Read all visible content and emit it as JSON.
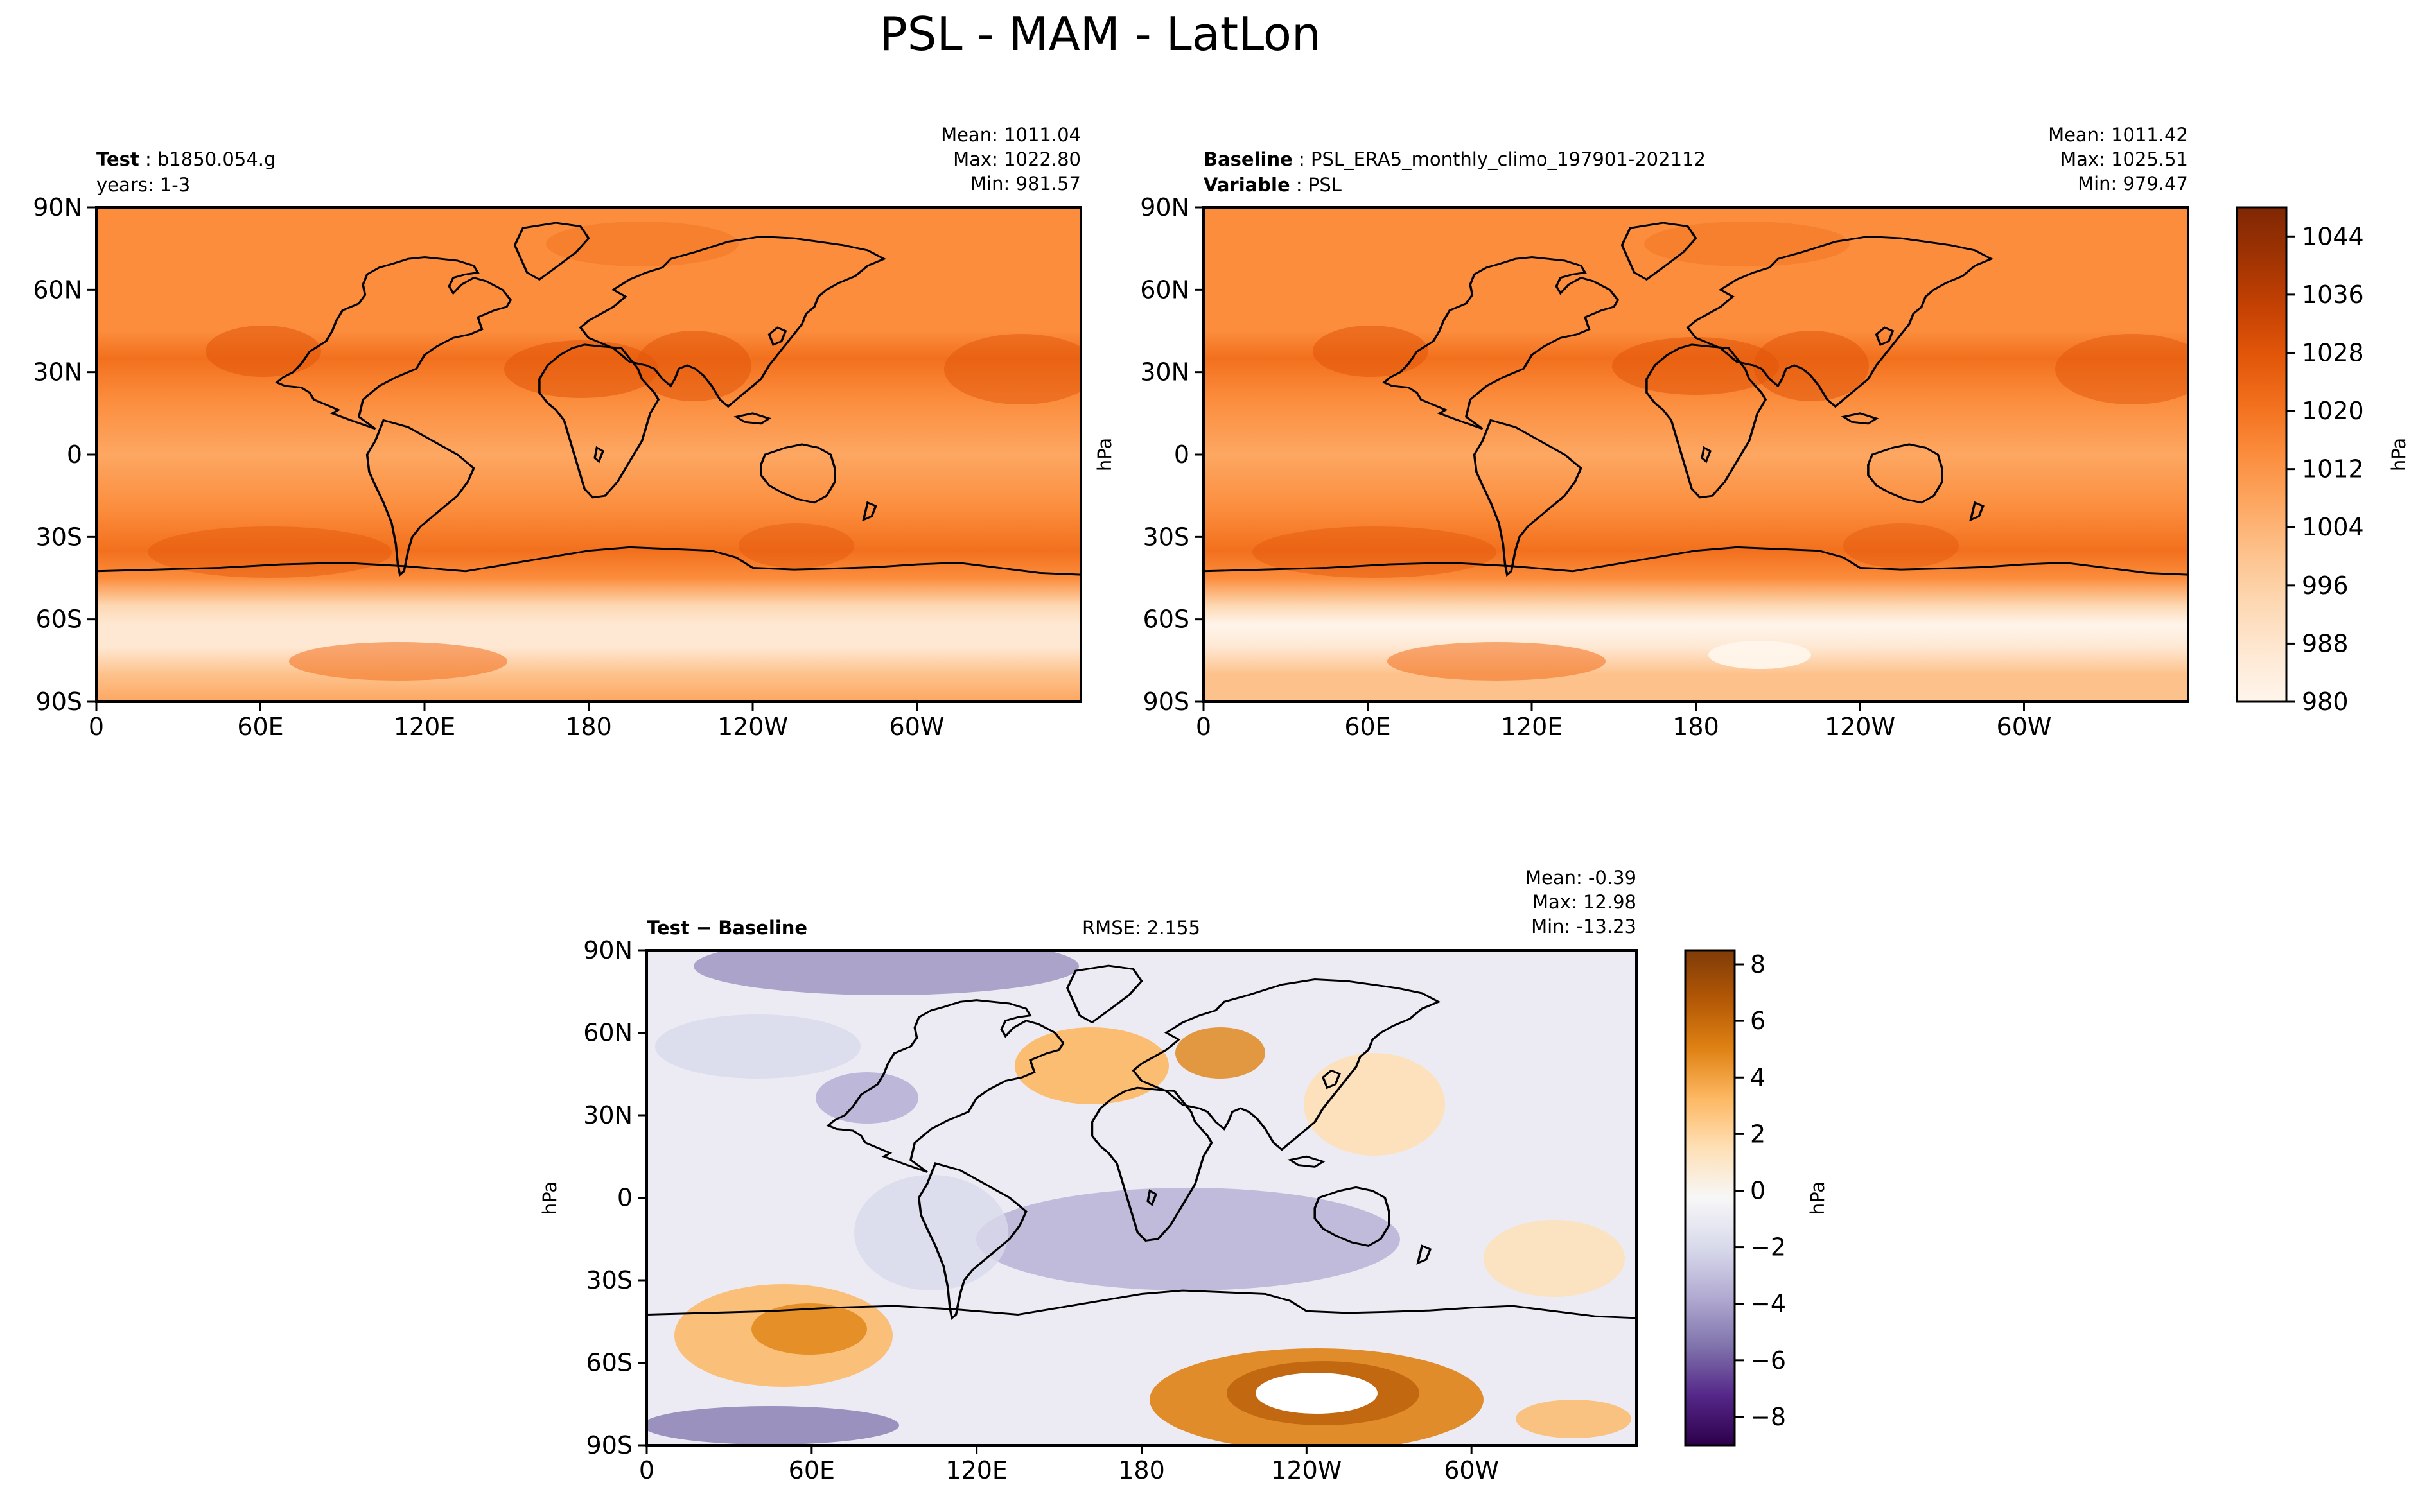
{
  "figure_title": "PSL - MAM - LatLon",
  "colors": {
    "sequential": [
      "#fff5eb",
      "#fee8d3",
      "#fdd8b3",
      "#fdc28c",
      "#fda762",
      "#fb8d3d",
      "#f2701d",
      "#e25609",
      "#c44103",
      "#9f3303",
      "#7f2704"
    ],
    "diverging": [
      "#2d004b",
      "#542788",
      "#8073ac",
      "#b2abd2",
      "#d8daeb",
      "#f7f7f7",
      "#fee0b6",
      "#fdb863",
      "#e08214",
      "#b35806",
      "#7f3b08"
    ],
    "ocean_fill": "#f99c54",
    "land_line": "#000000"
  },
  "chart_data": [
    {
      "type": "heatmap",
      "panel": "test",
      "title_key": "Test",
      "title_value": "b1850.054.g",
      "subtitle": "years: 1-3",
      "stats": {
        "mean": "Mean: 1011.04",
        "max": "Max: 1022.80",
        "min": "Min: 981.57"
      },
      "xticks": [
        "0",
        "60E",
        "120E",
        "180",
        "120W",
        "60W"
      ],
      "yticks": [
        "90N",
        "60N",
        "30N",
        "0",
        "30S",
        "60S",
        "90S"
      ],
      "ylim": [
        -90,
        90
      ],
      "xlim": [
        0,
        360
      ],
      "units": "hPa",
      "zonal_profile": {
        "lat": [
          90,
          70,
          60,
          45,
          35,
          20,
          0,
          -20,
          -35,
          -45,
          -55,
          -62,
          -70,
          -80,
          -90
        ],
        "value": [
          1013,
          1014,
          1011,
          1016,
          1018,
          1013,
          1010,
          1014,
          1019,
          1012,
          995,
          985,
          988,
          1000,
          1004
        ]
      }
    },
    {
      "type": "heatmap",
      "panel": "baseline",
      "title_key": "Baseline",
      "title_value": "PSL_ERA5_monthly_climo_197901-202112",
      "subtitle_key": "Variable",
      "subtitle_value": "PSL",
      "stats": {
        "mean": "Mean: 1011.42",
        "max": "Max: 1025.51",
        "min": "Min: 979.47"
      },
      "xticks": [
        "0",
        "60E",
        "120E",
        "180",
        "120W",
        "60W"
      ],
      "yticks": [
        "90N",
        "60N",
        "30N",
        "0",
        "30S",
        "60S",
        "90S"
      ],
      "ylabel": "hPa",
      "ylim": [
        -90,
        90
      ],
      "xlim": [
        0,
        360
      ],
      "units": "hPa",
      "colorbar": {
        "label": "hPa",
        "ticks": [
          "1044",
          "1036",
          "1028",
          "1020",
          "1012",
          "1004",
          "996",
          "988",
          "980"
        ],
        "min": 980,
        "max": 1048
      },
      "zonal_profile": {
        "lat": [
          90,
          70,
          60,
          45,
          35,
          20,
          0,
          -20,
          -35,
          -45,
          -55,
          -62,
          -70,
          -80,
          -90
        ],
        "value": [
          1013,
          1015,
          1011,
          1016,
          1018,
          1013,
          1010,
          1014,
          1018,
          1012,
          995,
          983,
          987,
          998,
          1003
        ]
      }
    },
    {
      "type": "heatmap",
      "panel": "difference",
      "title": "Test − Baseline",
      "rmse": "RMSE: 2.155",
      "stats": {
        "mean": "Mean: -0.39",
        "max": "Max: 12.98",
        "min": "Min: -13.23"
      },
      "xticks": [
        "0",
        "60E",
        "120E",
        "180",
        "120W",
        "60W"
      ],
      "yticks": [
        "90N",
        "60N",
        "30N",
        "0",
        "30S",
        "60S",
        "90S"
      ],
      "ylabel": "hPa",
      "ylim": [
        -90,
        90
      ],
      "xlim": [
        0,
        360
      ],
      "units": "hPa",
      "colorbar": {
        "label": "hPa",
        "ticks": [
          "8",
          "6",
          "4",
          "2",
          "0",
          "−2",
          "−4",
          "−6",
          "−8"
        ],
        "min": -9,
        "max": 8.5
      }
    }
  ]
}
